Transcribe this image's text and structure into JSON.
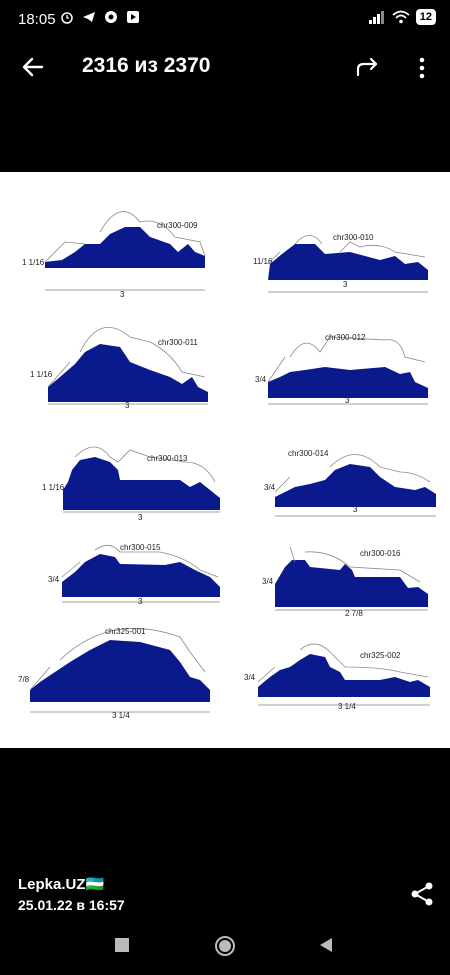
{
  "status": {
    "time": "18:05",
    "battery": "12"
  },
  "header": {
    "title": "2316 из 2370"
  },
  "icons": {
    "back": "arrow-left-icon",
    "share": "share-arrow-icon",
    "more": "more-vert-icon"
  },
  "moldings": [
    {
      "code": "chr300-009",
      "height": "1 1/16",
      "width": "3"
    },
    {
      "code": "chr300-010",
      "height": "11/16",
      "width": "3"
    },
    {
      "code": "chr300-011",
      "height": "1 1/16",
      "width": "3"
    },
    {
      "code": "chr300-012",
      "height": "3/4",
      "width": "3"
    },
    {
      "code": "chr300-013",
      "height": "1 1/16",
      "width": "3"
    },
    {
      "code": "chr300-014",
      "height": "3/4",
      "width": "3"
    },
    {
      "code": "chr300-015",
      "height": "3/4",
      "width": "3"
    },
    {
      "code": "chr300-016",
      "height": "3/4",
      "width": "2 7/8"
    },
    {
      "code": "chr325-001",
      "height": "7/8",
      "width": "3 1/4"
    },
    {
      "code": "chr325-002",
      "height": "3/4",
      "width": "3 1/4"
    }
  ],
  "caption": {
    "author": "Lepka.UZ🇺🇿",
    "date": "25.01.22 в 16:57"
  },
  "colors": {
    "profile": "#0a1a8c",
    "background": "#000000"
  }
}
